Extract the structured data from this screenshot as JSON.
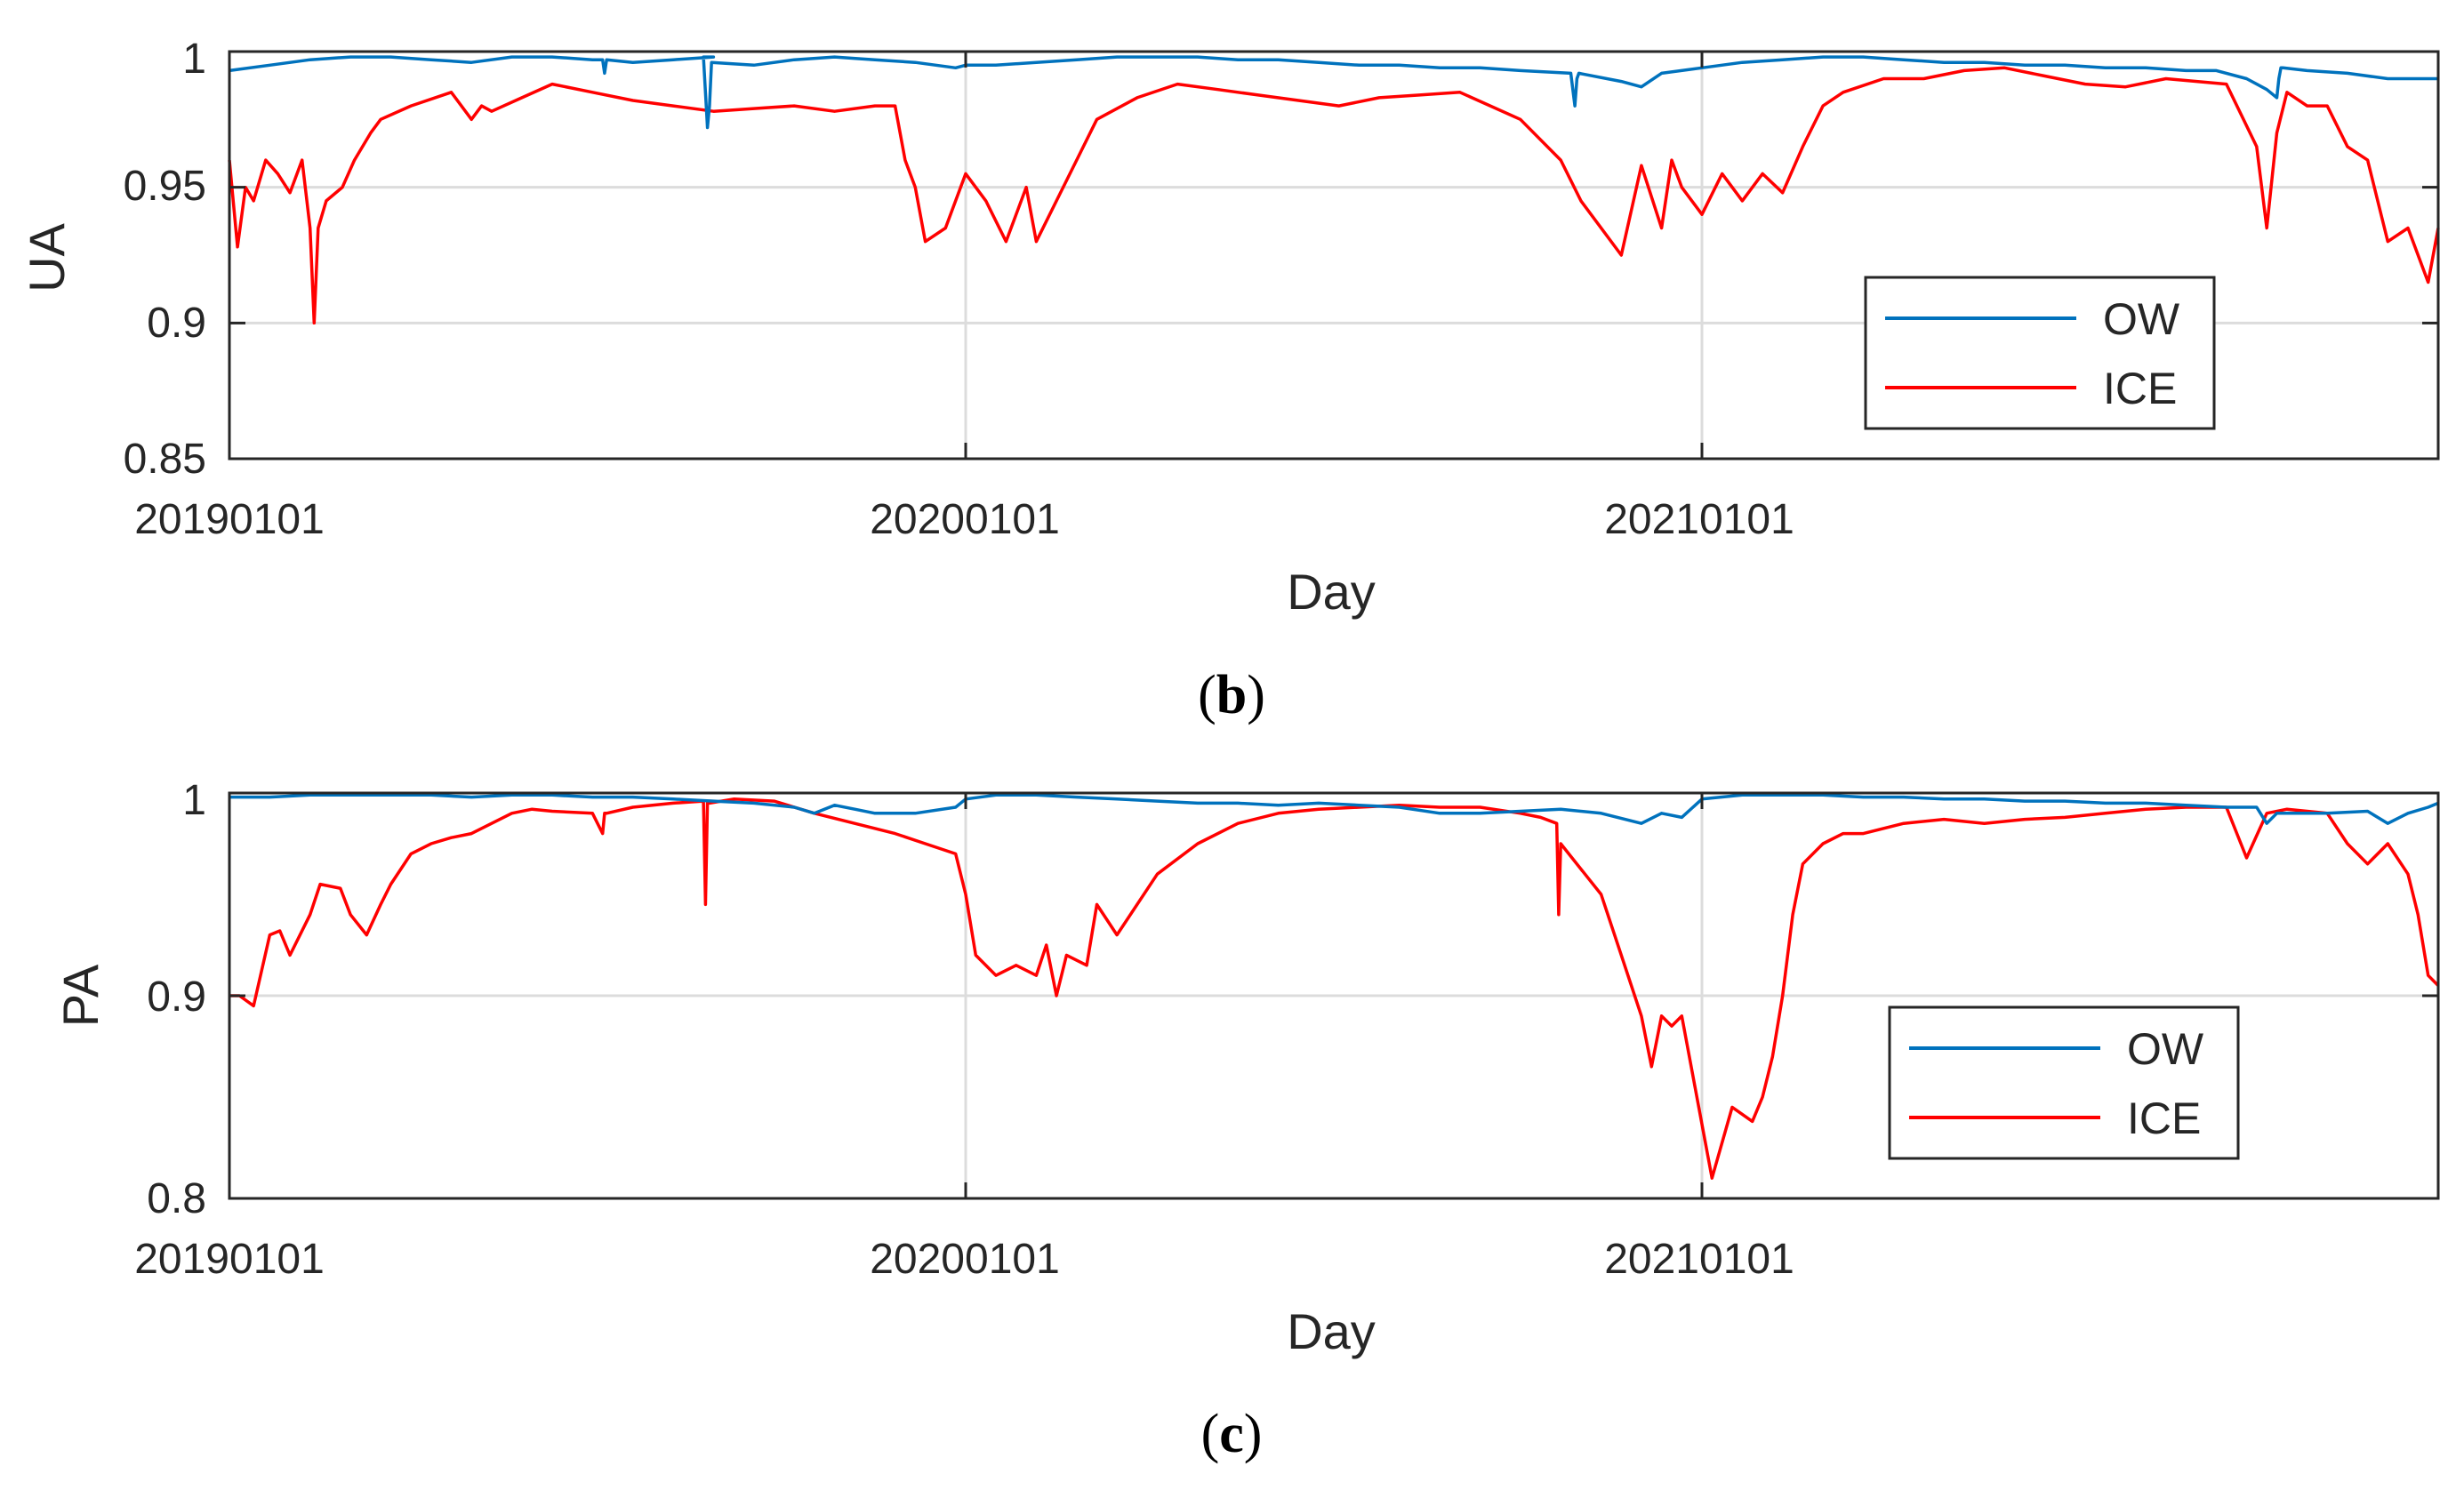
{
  "chart_data": [
    {
      "type": "line",
      "panel_label": "b",
      "xlabel": "Day",
      "ylabel": "UA",
      "ylim": [
        0.85,
        1.0
      ],
      "yticks": [
        0.85,
        0.9,
        0.95,
        1.0
      ],
      "ytick_labels": [
        "0.85",
        "0.9",
        "0.95",
        "1"
      ],
      "xlim": [
        0,
        1095
      ],
      "xticks": [
        0,
        365,
        730
      ],
      "xtick_labels": [
        "20190101",
        "20200101",
        "20210101"
      ],
      "grid": true,
      "legend_position": "bottom-right",
      "series": [
        {
          "name": "OW",
          "color": "#0072BD",
          "x": [
            0,
            20,
            40,
            60,
            80,
            100,
            120,
            140,
            160,
            180,
            185,
            186,
            187,
            200,
            220,
            240,
            235,
            237,
            238,
            239,
            260,
            280,
            300,
            320,
            340,
            360,
            365,
            380,
            400,
            420,
            440,
            460,
            480,
            500,
            520,
            540,
            560,
            580,
            600,
            620,
            640,
            665,
            667,
            668,
            669,
            690,
            700,
            710,
            730,
            750,
            770,
            790,
            810,
            830,
            850,
            870,
            890,
            910,
            930,
            950,
            970,
            985,
            1000,
            1010,
            1015,
            1016,
            1017,
            1018,
            1030,
            1050,
            1070,
            1080,
            1095
          ],
          "values": [
            0.993,
            0.995,
            0.997,
            0.998,
            0.998,
            0.997,
            0.996,
            0.998,
            0.998,
            0.997,
            0.997,
            0.992,
            0.997,
            0.996,
            0.997,
            0.998,
            0.998,
            0.972,
            0.98,
            0.996,
            0.995,
            0.997,
            0.998,
            0.997,
            0.996,
            0.994,
            0.995,
            0.995,
            0.996,
            0.997,
            0.998,
            0.998,
            0.998,
            0.997,
            0.997,
            0.996,
            0.995,
            0.995,
            0.994,
            0.994,
            0.993,
            0.992,
            0.98,
            0.99,
            0.992,
            0.989,
            0.987,
            0.992,
            0.994,
            0.996,
            0.997,
            0.998,
            0.998,
            0.997,
            0.996,
            0.996,
            0.995,
            0.995,
            0.994,
            0.994,
            0.993,
            0.993,
            0.99,
            0.986,
            0.983,
            0.99,
            0.994,
            0.994,
            0.993,
            0.992,
            0.99,
            0.99,
            0.99
          ]
        },
        {
          "name": "ICE",
          "color": "#FF0000",
          "x": [
            0,
            4,
            8,
            12,
            18,
            24,
            30,
            36,
            40,
            42,
            44,
            48,
            56,
            62,
            70,
            75,
            90,
            110,
            120,
            125,
            130,
            145,
            160,
            180,
            200,
            220,
            240,
            260,
            280,
            300,
            320,
            330,
            335,
            340,
            345,
            355,
            365,
            375,
            385,
            395,
            400,
            410,
            420,
            430,
            450,
            470,
            490,
            510,
            530,
            550,
            570,
            590,
            610,
            640,
            660,
            670,
            690,
            700,
            710,
            715,
            720,
            730,
            740,
            750,
            760,
            770,
            780,
            790,
            800,
            820,
            840,
            860,
            880,
            900,
            920,
            940,
            960,
            990,
            1005,
            1010,
            1015,
            1020,
            1030,
            1040,
            1050,
            1060,
            1070,
            1080,
            1090,
            1095
          ],
          "values": [
            0.96,
            0.928,
            0.95,
            0.945,
            0.96,
            0.955,
            0.948,
            0.96,
            0.935,
            0.9,
            0.935,
            0.945,
            0.95,
            0.96,
            0.97,
            0.975,
            0.98,
            0.985,
            0.975,
            0.98,
            0.978,
            0.983,
            0.988,
            0.985,
            0.982,
            0.98,
            0.978,
            0.979,
            0.98,
            0.978,
            0.98,
            0.98,
            0.96,
            0.95,
            0.93,
            0.935,
            0.955,
            0.945,
            0.93,
            0.95,
            0.93,
            0.945,
            0.96,
            0.975,
            0.983,
            0.988,
            0.986,
            0.984,
            0.982,
            0.98,
            0.983,
            0.984,
            0.985,
            0.975,
            0.96,
            0.945,
            0.925,
            0.958,
            0.935,
            0.96,
            0.95,
            0.94,
            0.955,
            0.945,
            0.955,
            0.948,
            0.965,
            0.98,
            0.985,
            0.99,
            0.99,
            0.993,
            0.994,
            0.991,
            0.988,
            0.987,
            0.99,
            0.988,
            0.965,
            0.935,
            0.97,
            0.985,
            0.98,
            0.98,
            0.965,
            0.96,
            0.93,
            0.935,
            0.915,
            0.935
          ]
        }
      ]
    },
    {
      "type": "line",
      "panel_label": "c",
      "xlabel": "Day",
      "ylabel": "PA",
      "ylim": [
        0.8,
        1.0
      ],
      "yticks": [
        0.8,
        0.9,
        1.0
      ],
      "ytick_labels": [
        "0.8",
        "0.9",
        "1"
      ],
      "xlim": [
        0,
        1095
      ],
      "xticks": [
        0,
        365,
        730
      ],
      "xtick_labels": [
        "20190101",
        "20200101",
        "20210101"
      ],
      "grid": true,
      "legend_position": "bottom-right",
      "series": [
        {
          "name": "OW",
          "color": "#0072BD",
          "x": [
            0,
            20,
            40,
            60,
            80,
            100,
            120,
            140,
            160,
            180,
            200,
            220,
            240,
            260,
            280,
            290,
            300,
            310,
            320,
            340,
            360,
            365,
            380,
            400,
            420,
            440,
            460,
            480,
            500,
            520,
            540,
            560,
            580,
            600,
            620,
            640,
            660,
            680,
            700,
            710,
            720,
            730,
            750,
            770,
            790,
            810,
            830,
            850,
            870,
            890,
            910,
            930,
            950,
            970,
            990,
            1005,
            1010,
            1015,
            1020,
            1040,
            1060,
            1070,
            1080,
            1090,
            1095
          ],
          "values": [
            0.998,
            0.998,
            0.999,
            0.999,
            0.999,
            0.999,
            0.998,
            0.999,
            0.999,
            0.998,
            0.998,
            0.997,
            0.996,
            0.995,
            0.993,
            0.99,
            0.994,
            0.992,
            0.99,
            0.99,
            0.993,
            0.997,
            0.999,
            0.999,
            0.998,
            0.997,
            0.996,
            0.995,
            0.995,
            0.994,
            0.995,
            0.994,
            0.993,
            0.99,
            0.99,
            0.991,
            0.992,
            0.99,
            0.985,
            0.99,
            0.988,
            0.997,
            0.999,
            0.999,
            0.999,
            0.998,
            0.998,
            0.997,
            0.997,
            0.996,
            0.996,
            0.995,
            0.995,
            0.994,
            0.993,
            0.993,
            0.985,
            0.99,
            0.99,
            0.99,
            0.991,
            0.985,
            0.99,
            0.993,
            0.995
          ]
        },
        {
          "name": "ICE",
          "color": "#FF0000",
          "x": [
            0,
            5,
            12,
            20,
            25,
            30,
            40,
            45,
            55,
            60,
            68,
            75,
            80,
            90,
            100,
            110,
            120,
            130,
            140,
            150,
            160,
            180,
            185,
            186,
            187,
            200,
            220,
            235,
            236,
            237,
            238,
            250,
            270,
            290,
            310,
            330,
            345,
            360,
            365,
            370,
            380,
            390,
            400,
            405,
            410,
            415,
            425,
            430,
            440,
            460,
            480,
            500,
            520,
            540,
            560,
            580,
            600,
            620,
            640,
            650,
            658,
            659,
            660,
            680,
            690,
            700,
            705,
            710,
            715,
            720,
            735,
            745,
            755,
            760,
            765,
            770,
            775,
            780,
            790,
            800,
            810,
            830,
            850,
            870,
            890,
            910,
            930,
            950,
            970,
            990,
            1000,
            1010,
            1020,
            1040,
            1050,
            1060,
            1070,
            1080,
            1085,
            1090,
            1095
          ],
          "values": [
            0.9,
            0.9,
            0.895,
            0.93,
            0.932,
            0.92,
            0.94,
            0.955,
            0.953,
            0.94,
            0.93,
            0.945,
            0.955,
            0.97,
            0.975,
            0.978,
            0.98,
            0.985,
            0.99,
            0.992,
            0.991,
            0.99,
            0.98,
            0.99,
            0.99,
            0.993,
            0.995,
            0.996,
            0.945,
            0.995,
            0.995,
            0.997,
            0.996,
            0.99,
            0.985,
            0.98,
            0.975,
            0.97,
            0.95,
            0.92,
            0.91,
            0.915,
            0.91,
            0.925,
            0.9,
            0.92,
            0.915,
            0.945,
            0.93,
            0.96,
            0.975,
            0.985,
            0.99,
            0.992,
            0.993,
            0.994,
            0.993,
            0.993,
            0.99,
            0.988,
            0.985,
            0.94,
            0.975,
            0.95,
            0.92,
            0.89,
            0.865,
            0.89,
            0.885,
            0.89,
            0.81,
            0.845,
            0.838,
            0.85,
            0.87,
            0.9,
            0.94,
            0.965,
            0.975,
            0.98,
            0.98,
            0.985,
            0.987,
            0.985,
            0.987,
            0.988,
            0.99,
            0.992,
            0.993,
            0.993,
            0.968,
            0.99,
            0.992,
            0.99,
            0.975,
            0.965,
            0.975,
            0.96,
            0.94,
            0.91,
            0.905
          ]
        }
      ]
    }
  ]
}
